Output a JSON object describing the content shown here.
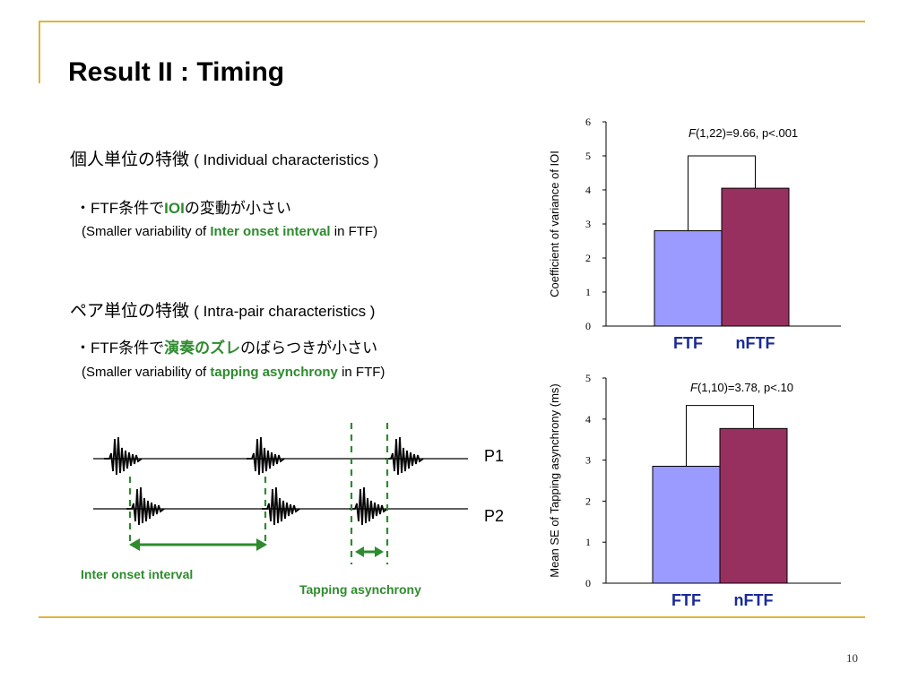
{
  "colors": {
    "gold": "#e0b43a",
    "green": "#2e8b2e",
    "ftf": "#9b9bff",
    "nftf": "#98305f"
  },
  "slide": {
    "title": "Result II : Timing",
    "page_number": "10"
  },
  "section1": {
    "heading_jp": "個人単位の特徴",
    "heading_en": "( Individual characteristics )",
    "bullet_prefix": "・FTF条件で",
    "bullet_highlight": "IOI",
    "bullet_suffix": "の変動が小さい",
    "sub_prefix": "(Smaller variability of ",
    "sub_highlight": "Inter onset interval",
    "sub_suffix": " in FTF)"
  },
  "section2": {
    "heading_jp": "ペア単位の特徴",
    "heading_en": "( Intra-pair characteristics )",
    "bullet_prefix": "・FTF条件で",
    "bullet_highlight": "演奏のズレ",
    "bullet_suffix": "のばらつきが小さい",
    "sub_prefix": "(Smaller variability of ",
    "sub_highlight": "tapping asynchrony",
    "sub_suffix": " in FTF)"
  },
  "diagram": {
    "p1_label": "P1",
    "p2_label": "P2",
    "ioi_label": "Inter onset interval",
    "asyn_label": "Tapping asynchrony"
  },
  "chart_data": [
    {
      "type": "bar",
      "categories": [
        "FTF",
        "nFTF"
      ],
      "values": [
        2.8,
        4.05
      ],
      "ylabel": "Coefficient of variance of IOI",
      "ylim": [
        0,
        6
      ],
      "yticks": [
        "0",
        "1",
        "2",
        "3",
        "4",
        "5",
        "6"
      ],
      "annotation_f": "F",
      "annotation_rest": "(1,22)=9.66, p<.001",
      "grid": false
    },
    {
      "type": "bar",
      "categories": [
        "FTF",
        "nFTF"
      ],
      "values": [
        2.85,
        3.77
      ],
      "ylabel": "Mean SE of Tapping asynchrony (ms)",
      "ylim": [
        0,
        5
      ],
      "yticks": [
        "0",
        "1",
        "2",
        "3",
        "4",
        "5"
      ],
      "annotation_f": "F",
      "annotation_rest": "(1,10)=3.78, p<.10",
      "grid": false
    }
  ]
}
